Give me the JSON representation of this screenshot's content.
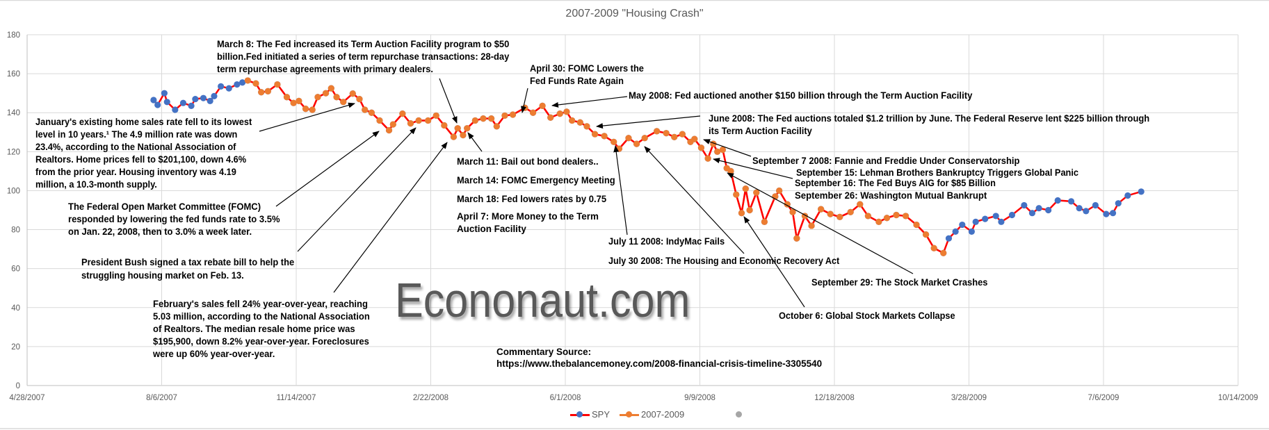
{
  "colors": {
    "spy_line": "#ff0000",
    "spy_marker": "#4472c4",
    "crash_marker": "#ed7d31",
    "grid": "#d9d9d9",
    "extra_legend": "#a6a6a6"
  },
  "watermark": "Econonaut.com",
  "chart_data": {
    "type": "line",
    "title": "2007-2009 \"Housing Crash\"",
    "xlabel": "",
    "ylabel": "",
    "ylim": [
      0,
      180
    ],
    "yticks": [
      "0",
      "20",
      "40",
      "60",
      "80",
      "100",
      "120",
      "140",
      "160",
      "180"
    ],
    "xlim": [
      "2007-04-28",
      "2009-10-14"
    ],
    "xticks": [
      "4/28/2007",
      "8/6/2007",
      "11/14/2007",
      "2/22/2008",
      "6/1/2008",
      "9/9/2008",
      "12/18/2008",
      "3/28/2009",
      "7/6/2009",
      "10/14/2009"
    ],
    "grid": true,
    "legend_position": "bottom",
    "legend": [
      "SPY",
      "2007-2009",
      ""
    ],
    "series": [
      {
        "name": "SPY",
        "points": [
          [
            "2007-07-31",
            146.5
          ],
          [
            "2007-08-03",
            144
          ],
          [
            "2007-08-08",
            150
          ],
          [
            "2007-08-10",
            145.5
          ],
          [
            "2007-08-16",
            141.5
          ],
          [
            "2007-08-22",
            145
          ],
          [
            "2007-08-28",
            143.5
          ],
          [
            "2007-08-31",
            147
          ],
          [
            "2007-09-06",
            147.5
          ],
          [
            "2007-09-11",
            146
          ],
          [
            "2007-09-14",
            148.5
          ],
          [
            "2007-09-19",
            153.5
          ],
          [
            "2007-09-25",
            152.5
          ],
          [
            "2007-10-01",
            154.5
          ],
          [
            "2007-10-05",
            155.5
          ],
          [
            "2007-10-09",
            156.5
          ],
          [
            "2007-10-15",
            155
          ],
          [
            "2007-10-19",
            150.5
          ],
          [
            "2007-10-24",
            151
          ],
          [
            "2007-10-31",
            154.5
          ],
          [
            "2007-11-07",
            148
          ],
          [
            "2007-11-12",
            145
          ],
          [
            "2007-11-16",
            146
          ],
          [
            "2007-11-21",
            142
          ],
          [
            "2007-11-26",
            141.5
          ],
          [
            "2007-11-30",
            148
          ],
          [
            "2007-12-06",
            150
          ],
          [
            "2007-12-10",
            152.5
          ],
          [
            "2007-12-14",
            148
          ],
          [
            "2007-12-19",
            145.5
          ],
          [
            "2007-12-26",
            149.8
          ],
          [
            "2007-12-31",
            147
          ],
          [
            "2008-01-04",
            141.5
          ],
          [
            "2008-01-09",
            140
          ],
          [
            "2008-01-15",
            136
          ],
          [
            "2008-01-22",
            131
          ],
          [
            "2008-01-25",
            134
          ],
          [
            "2008-02-01",
            139.5
          ],
          [
            "2008-02-07",
            134.5
          ],
          [
            "2008-02-13",
            136
          ],
          [
            "2008-02-20",
            136
          ],
          [
            "2008-02-26",
            138.5
          ],
          [
            "2008-03-03",
            133.5
          ],
          [
            "2008-03-10",
            127.6
          ],
          [
            "2008-03-13",
            132
          ],
          [
            "2008-03-17",
            128.5
          ],
          [
            "2008-03-20",
            132
          ],
          [
            "2008-03-26",
            136
          ],
          [
            "2008-04-01",
            137
          ],
          [
            "2008-04-07",
            137
          ],
          [
            "2008-04-11",
            133
          ],
          [
            "2008-04-17",
            138.5
          ],
          [
            "2008-04-23",
            139
          ],
          [
            "2008-05-02",
            142.5
          ],
          [
            "2008-05-08",
            140
          ],
          [
            "2008-05-15",
            143.5
          ],
          [
            "2008-05-21",
            137.5
          ],
          [
            "2008-05-28",
            139.5
          ],
          [
            "2008-06-02",
            140.5
          ],
          [
            "2008-06-06",
            136
          ],
          [
            "2008-06-12",
            135
          ],
          [
            "2008-06-17",
            133
          ],
          [
            "2008-06-23",
            129
          ],
          [
            "2008-06-30",
            128
          ],
          [
            "2008-07-07",
            125
          ],
          [
            "2008-07-11",
            121.5
          ],
          [
            "2008-07-18",
            127
          ],
          [
            "2008-07-24",
            124
          ],
          [
            "2008-07-30",
            127
          ],
          [
            "2008-08-08",
            130.5
          ],
          [
            "2008-08-15",
            129.5
          ],
          [
            "2008-08-21",
            127.5
          ],
          [
            "2008-08-27",
            129
          ],
          [
            "2008-09-02",
            125
          ],
          [
            "2008-09-05",
            126.5
          ],
          [
            "2008-09-10",
            122
          ],
          [
            "2008-09-15",
            116.5
          ],
          [
            "2008-09-19",
            124
          ],
          [
            "2008-09-22",
            120
          ],
          [
            "2008-09-26",
            121
          ],
          [
            "2008-09-29",
            111.5
          ],
          [
            "2008-10-02",
            110
          ],
          [
            "2008-10-06",
            98
          ],
          [
            "2008-10-10",
            88.5
          ],
          [
            "2008-10-13",
            101
          ],
          [
            "2008-10-16",
            90
          ],
          [
            "2008-10-21",
            99
          ],
          [
            "2008-10-27",
            84
          ],
          [
            "2008-11-04",
            97
          ],
          [
            "2008-11-07",
            100
          ],
          [
            "2008-11-13",
            93
          ],
          [
            "2008-11-17",
            89
          ],
          [
            "2008-11-20",
            75.5
          ],
          [
            "2008-11-26",
            87
          ],
          [
            "2008-12-01",
            82
          ],
          [
            "2008-12-08",
            90.5
          ],
          [
            "2008-12-15",
            88
          ],
          [
            "2008-12-22",
            86.5
          ],
          [
            "2008-12-30",
            89
          ],
          [
            "2009-01-06",
            93
          ],
          [
            "2009-01-12",
            87
          ],
          [
            "2009-01-20",
            84
          ],
          [
            "2009-01-26",
            86
          ],
          [
            "2009-02-02",
            87.5
          ],
          [
            "2009-02-09",
            87
          ],
          [
            "2009-02-17",
            82.5
          ],
          [
            "2009-02-24",
            77.5
          ],
          [
            "2009-03-02",
            70.5
          ],
          [
            "2009-03-09",
            68
          ],
          [
            "2009-03-13",
            75.5
          ],
          [
            "2009-03-18",
            79
          ],
          [
            "2009-03-23",
            82.5
          ],
          [
            "2009-03-30",
            79
          ],
          [
            "2009-04-02",
            84
          ],
          [
            "2009-04-09",
            85.5
          ],
          [
            "2009-04-17",
            87
          ],
          [
            "2009-04-21",
            84
          ],
          [
            "2009-04-29",
            87.5
          ],
          [
            "2009-05-08",
            92.5
          ],
          [
            "2009-05-14",
            88.5
          ],
          [
            "2009-05-19",
            91
          ],
          [
            "2009-05-26",
            90
          ],
          [
            "2009-06-02",
            95
          ],
          [
            "2009-06-12",
            94.5
          ],
          [
            "2009-06-18",
            91
          ],
          [
            "2009-06-23",
            89.5
          ],
          [
            "2009-06-30",
            92.5
          ],
          [
            "2009-07-08",
            88
          ],
          [
            "2009-07-13",
            88.5
          ],
          [
            "2009-07-17",
            93.5
          ],
          [
            "2009-07-24",
            97.5
          ],
          [
            "2009-08-03",
            99.5
          ]
        ]
      },
      {
        "name": "2007-2009",
        "points": [
          [
            "2007-10-09",
            156.5
          ],
          [
            "2007-10-15",
            155
          ],
          [
            "2007-10-19",
            150.5
          ],
          [
            "2007-10-24",
            151
          ],
          [
            "2007-10-31",
            154.5
          ],
          [
            "2007-11-07",
            148
          ],
          [
            "2007-11-12",
            145
          ],
          [
            "2007-11-16",
            146
          ],
          [
            "2007-11-21",
            142
          ],
          [
            "2007-11-26",
            141.5
          ],
          [
            "2007-11-30",
            148
          ],
          [
            "2007-12-06",
            150
          ],
          [
            "2007-12-10",
            152.5
          ],
          [
            "2007-12-14",
            148
          ],
          [
            "2007-12-19",
            145.5
          ],
          [
            "2007-12-26",
            149.8
          ],
          [
            "2007-12-31",
            147
          ],
          [
            "2008-01-04",
            141.5
          ],
          [
            "2008-01-09",
            140
          ],
          [
            "2008-01-15",
            136
          ],
          [
            "2008-01-22",
            131
          ],
          [
            "2008-01-25",
            134
          ],
          [
            "2008-02-01",
            139.5
          ],
          [
            "2008-02-07",
            134.5
          ],
          [
            "2008-02-13",
            136
          ],
          [
            "2008-02-20",
            136
          ],
          [
            "2008-02-26",
            138.5
          ],
          [
            "2008-03-03",
            133.5
          ],
          [
            "2008-03-10",
            127.6
          ],
          [
            "2008-03-13",
            132
          ],
          [
            "2008-03-17",
            128.5
          ],
          [
            "2008-03-20",
            132
          ],
          [
            "2008-03-26",
            136
          ],
          [
            "2008-04-01",
            137
          ],
          [
            "2008-04-07",
            137
          ],
          [
            "2008-04-11",
            133
          ],
          [
            "2008-04-17",
            138.5
          ],
          [
            "2008-04-23",
            139
          ],
          [
            "2008-05-02",
            142.5
          ],
          [
            "2008-05-08",
            140
          ],
          [
            "2008-05-15",
            143.5
          ],
          [
            "2008-05-21",
            137.5
          ],
          [
            "2008-05-28",
            139.5
          ],
          [
            "2008-06-02",
            140.5
          ],
          [
            "2008-06-06",
            136
          ],
          [
            "2008-06-12",
            135
          ],
          [
            "2008-06-17",
            133
          ],
          [
            "2008-06-23",
            129
          ],
          [
            "2008-06-30",
            128
          ],
          [
            "2008-07-07",
            125
          ],
          [
            "2008-07-11",
            121.5
          ],
          [
            "2008-07-18",
            127
          ],
          [
            "2008-07-24",
            124
          ],
          [
            "2008-07-30",
            127
          ],
          [
            "2008-08-08",
            130.5
          ],
          [
            "2008-08-15",
            129.5
          ],
          [
            "2008-08-21",
            127.5
          ],
          [
            "2008-08-27",
            129
          ],
          [
            "2008-09-02",
            125
          ],
          [
            "2008-09-05",
            126.5
          ],
          [
            "2008-09-10",
            122
          ],
          [
            "2008-09-15",
            116.5
          ],
          [
            "2008-09-19",
            124
          ],
          [
            "2008-09-22",
            120
          ],
          [
            "2008-09-26",
            121
          ],
          [
            "2008-09-29",
            111.5
          ],
          [
            "2008-10-02",
            110
          ],
          [
            "2008-10-06",
            98
          ],
          [
            "2008-10-10",
            88.5
          ],
          [
            "2008-10-13",
            101
          ],
          [
            "2008-10-16",
            90
          ],
          [
            "2008-10-21",
            99
          ],
          [
            "2008-10-27",
            84
          ],
          [
            "2008-11-04",
            97
          ],
          [
            "2008-11-07",
            100
          ],
          [
            "2008-11-13",
            93
          ],
          [
            "2008-11-17",
            89
          ],
          [
            "2008-11-20",
            75.5
          ],
          [
            "2008-11-26",
            87
          ],
          [
            "2008-12-01",
            82
          ],
          [
            "2008-12-08",
            90.5
          ],
          [
            "2008-12-15",
            88
          ],
          [
            "2008-12-22",
            86.5
          ],
          [
            "2008-12-30",
            89
          ],
          [
            "2009-01-06",
            93
          ],
          [
            "2009-01-12",
            87
          ],
          [
            "2009-01-20",
            84
          ],
          [
            "2009-01-26",
            86
          ],
          [
            "2009-02-02",
            87.5
          ],
          [
            "2009-02-09",
            87
          ],
          [
            "2009-02-17",
            82.5
          ],
          [
            "2009-02-24",
            77.5
          ],
          [
            "2009-03-02",
            70.5
          ],
          [
            "2009-03-09",
            68
          ]
        ]
      }
    ],
    "annotations": [
      {
        "lines": [
          "March 8: The Fed increased its Term Auction Facility program to $50",
          "billion.Fed initiated a series of term repurchase transactions: 28-day",
          "term repurchase agreements with primary dealers."
        ]
      },
      {
        "lines": [
          "April 30: FOMC Lowers the",
          "Fed Funds Rate Again"
        ]
      },
      {
        "lines": [
          "May 2008: Fed auctioned another $150 billion through the Term Auction Facility"
        ]
      },
      {
        "lines": [
          "June 2008: The Fed auctions totaled $1.2 trillion by June. The Federal Reserve lent $225 billion through",
          "its Term Auction Facility"
        ]
      },
      {
        "lines": [
          "January's existing home sales rate fell to its lowest",
          "level in 10 years.¹ The 4.9 million rate was down",
          "23.4%, according to the National Association of",
          "Realtors. Home prices fell to $201,100, down 4.6%",
          "from the prior year. Housing inventory was 4.19",
          "million, a 10.3-month supply."
        ]
      },
      {
        "lines": [
          "The Federal Open Market Committee (FOMC)",
          "responded by lowering the fed funds rate to 3.5%",
          "on Jan. 22, 2008, then to 3.0% a week later."
        ]
      },
      {
        "lines": [
          "President Bush signed a tax rebate bill to help the",
          "struggling housing market on Feb. 13."
        ]
      },
      {
        "lines": [
          "February's sales fell 24% year-over-year, reaching",
          "5.03 million, according to the National Association",
          "of Realtors. The median resale home price was",
          "$195,900, down 8.2% year-over-year. Foreclosures",
          "were up 60% year-over-year."
        ]
      },
      {
        "lines": [
          "March 11: Bail out bond dealers.."
        ]
      },
      {
        "lines": [
          "March 14: FOMC Emergency Meeting"
        ]
      },
      {
        "lines": [
          "March 18: Fed lowers rates by 0.75"
        ]
      },
      {
        "lines": [
          "April 7: More Money to the Term",
          "Auction Facility"
        ]
      },
      {
        "lines": [
          "July 11 2008: IndyMac Fails"
        ]
      },
      {
        "lines": [
          "July 30 2008: The Housing and Economic Recovery Act"
        ]
      },
      {
        "lines": [
          "September 7 2008: Fannie and Freddie Under Conservatorship"
        ]
      },
      {
        "lines": [
          "September 15: Lehman Brothers Bankruptcy Triggers Global Panic"
        ]
      },
      {
        "lines": [
          "September 16: The Fed Buys AIG for $85 Billion"
        ]
      },
      {
        "lines": [
          "September 26: Washington Mutual Bankrupt"
        ]
      },
      {
        "lines": [
          "September 29: The Stock Market Crashes"
        ]
      },
      {
        "lines": [
          "October 6: Global Stock Markets Collapse"
        ]
      },
      {
        "lines": [
          "Commentary Source:",
          "https://www.thebalancemoney.com/2008-financial-crisis-timeline-3305540"
        ]
      }
    ]
  }
}
